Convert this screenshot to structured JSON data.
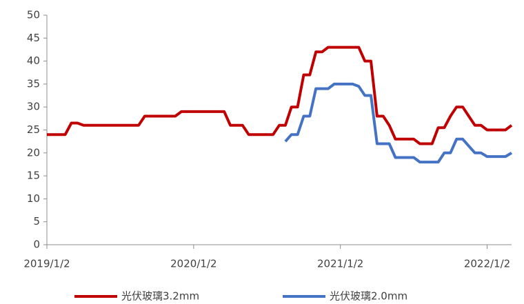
{
  "chart_data": {
    "type": "line",
    "categories": [
      "2019/1/2",
      null,
      null,
      null,
      null,
      null,
      null,
      null,
      null,
      null,
      null,
      null,
      null,
      null,
      null,
      null,
      null,
      null,
      null,
      null,
      null,
      null,
      null,
      null,
      "2020/1/2",
      null,
      null,
      null,
      null,
      null,
      null,
      null,
      null,
      null,
      null,
      null,
      null,
      null,
      null,
      null,
      null,
      null,
      null,
      null,
      null,
      null,
      null,
      null,
      "2021/1/2",
      null,
      null,
      null,
      null,
      null,
      null,
      null,
      null,
      null,
      null,
      null,
      null,
      null,
      null,
      null,
      null,
      null,
      null,
      null,
      null,
      null,
      null,
      null,
      "2022/1/2",
      null,
      null,
      null,
      null
    ],
    "series": [
      {
        "name": "光伏玻璃3.2mm",
        "color": "#c00000",
        "values": [
          24,
          24,
          24,
          24,
          26.5,
          26.5,
          26,
          26,
          26,
          26,
          26,
          26,
          26,
          26,
          26,
          26,
          28,
          28,
          28,
          28,
          28,
          28,
          29,
          29,
          29,
          29,
          29,
          29,
          29,
          29,
          26,
          26,
          26,
          24,
          24,
          24,
          24,
          24,
          26,
          26,
          30,
          30,
          37,
          37,
          42,
          42,
          43,
          43,
          43,
          43,
          43,
          43,
          40,
          40,
          28,
          28,
          26,
          23,
          23,
          23,
          23,
          22,
          22,
          22,
          25.5,
          25.5,
          28,
          30,
          30,
          28,
          26,
          26,
          25,
          25,
          25,
          25,
          26
        ]
      },
      {
        "name": "光伏玻璃2.0mm",
        "color": "#4472c4",
        "values": [
          null,
          null,
          null,
          null,
          null,
          null,
          null,
          null,
          null,
          null,
          null,
          null,
          null,
          null,
          null,
          null,
          null,
          null,
          null,
          null,
          null,
          null,
          null,
          null,
          null,
          null,
          null,
          null,
          null,
          null,
          null,
          null,
          null,
          null,
          null,
          null,
          null,
          null,
          null,
          22.5,
          24,
          24,
          28,
          28,
          34,
          34,
          34,
          35,
          35,
          35,
          35,
          34.5,
          32.5,
          32.5,
          22,
          22,
          22,
          19,
          19,
          19,
          19,
          18,
          18,
          18,
          18,
          20,
          20,
          23,
          23,
          21.5,
          20,
          20,
          19.2,
          19.2,
          19.2,
          19.2,
          20
        ]
      }
    ],
    "ylim": [
      0,
      50
    ],
    "yticks": [
      0,
      5,
      10,
      15,
      20,
      25,
      30,
      35,
      40,
      45,
      50
    ],
    "grid": false
  }
}
